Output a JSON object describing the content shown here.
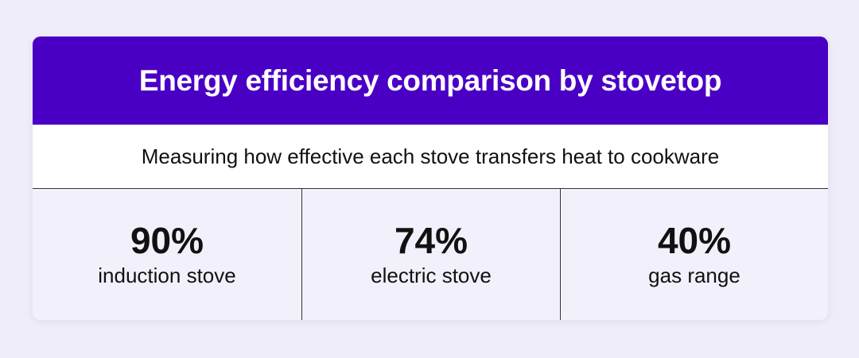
{
  "title": "Energy efficiency comparison by stovetop",
  "subtitle": "Measuring how effective each stove transfers heat to cookware",
  "colors": {
    "header": "#4a00c4",
    "background": "#efedf8"
  },
  "stats": [
    {
      "value": "90%",
      "label": "induction stove"
    },
    {
      "value": "74%",
      "label": "electric stove"
    },
    {
      "value": "40%",
      "label": "gas range"
    }
  ]
}
